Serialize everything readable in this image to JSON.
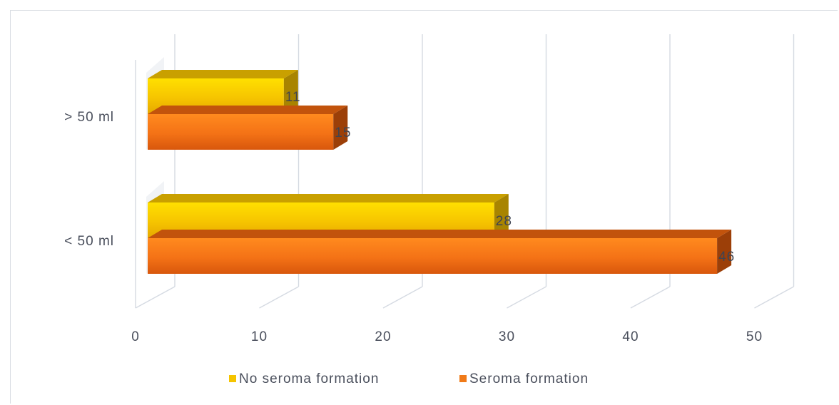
{
  "chart_data": {
    "type": "bar",
    "orientation": "horizontal",
    "categories": [
      "> 50 ml",
      "< 50 ml"
    ],
    "series": [
      {
        "name": "No seroma formation",
        "values": [
          11,
          28
        ],
        "color": "#F5C400"
      },
      {
        "name": "Seroma formation",
        "values": [
          15,
          46
        ],
        "color": "#F07A18"
      }
    ],
    "x_ticks": [
      "0",
      "10",
      "20",
      "30",
      "40",
      "50"
    ],
    "xlim": [
      0,
      50
    ],
    "grid": true,
    "legend_position": "bottom",
    "title": "",
    "xlabel": "",
    "ylabel": ""
  }
}
